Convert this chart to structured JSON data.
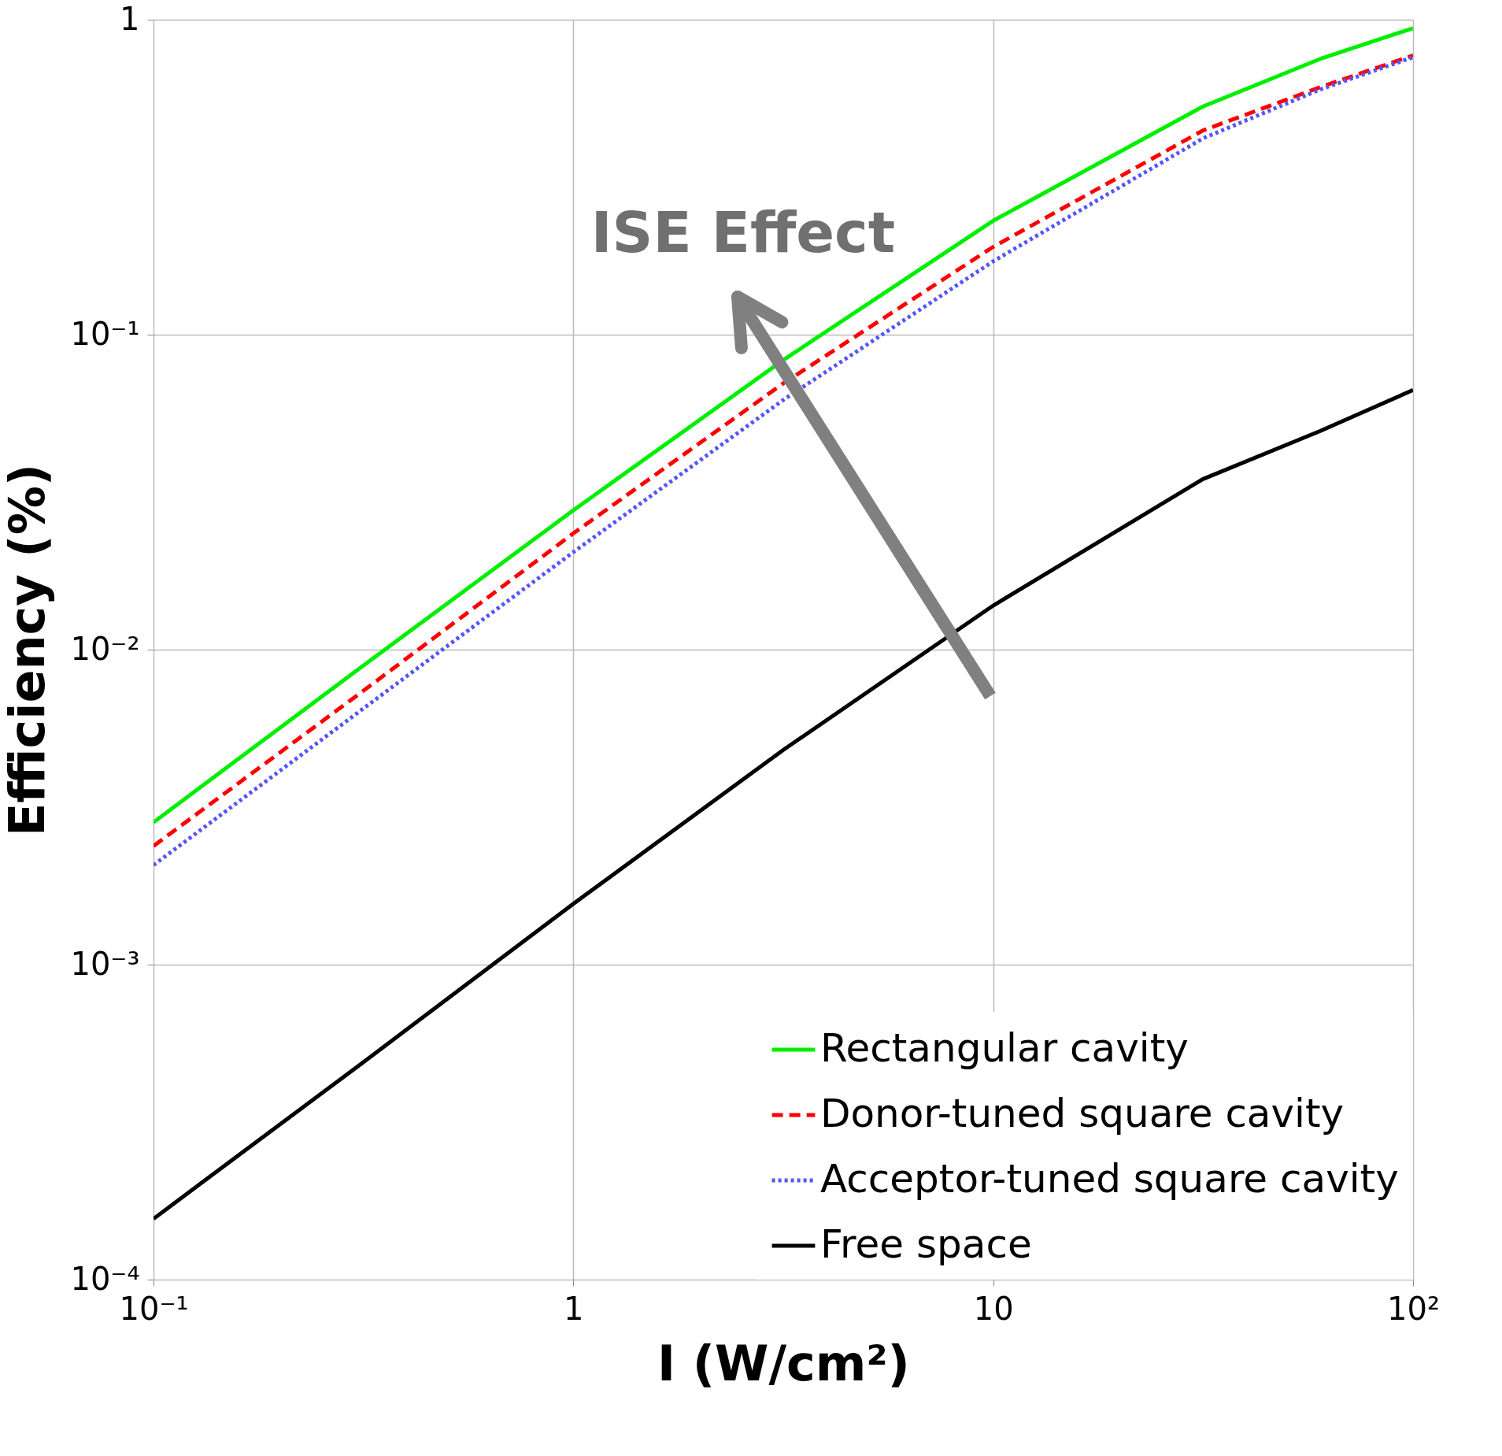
{
  "chart_data": {
    "type": "line",
    "xlabel": "I (W/cm²)",
    "ylabel": "Efficiency (%)",
    "log": "xy",
    "grid": true,
    "legend": "bottom right",
    "x": [
      0.1,
      0.316,
      1,
      3.16,
      10,
      31.6,
      60,
      100
    ],
    "xlim": [
      0.1,
      100
    ],
    "ylim": [
      0.0001,
      1
    ],
    "xticks": [
      {
        "value": 0.1,
        "label": "10⁻¹"
      },
      1,
      10,
      {
        "value": 100,
        "label": "10²"
      }
    ],
    "yticks": [
      {
        "value": 0.0001,
        "label": "10⁻⁴"
      },
      {
        "value": 0.001,
        "label": "10⁻³"
      },
      {
        "value": 0.01,
        "label": "10⁻²"
      },
      {
        "value": 0.1,
        "label": "10⁻¹"
      },
      1
    ],
    "series": [
      {
        "name": "Rectangular cavity",
        "color": "#00ee00",
        "line_style": "solid",
        "values": [
          0.00283,
          0.0089,
          0.0277,
          0.083,
          0.23,
          0.53,
          0.75,
          0.94
        ]
      },
      {
        "name": "Donor-tuned square cavity",
        "color": "#ff0000",
        "line_style": "dashed",
        "values": [
          0.00238,
          0.0074,
          0.0234,
          0.07,
          0.19,
          0.445,
          0.61,
          0.77
        ]
      },
      {
        "name": "Acceptor-tuned square cavity",
        "color": "#5555ff",
        "line_style": "dotted",
        "values": [
          0.00207,
          0.0065,
          0.0204,
          0.062,
          0.171,
          0.42,
          0.6,
          0.76
        ]
      },
      {
        "name": "Free space",
        "color": "#000000",
        "line_style": "solid",
        "values": [
          0.000156,
          0.00049,
          0.00156,
          0.0048,
          0.0138,
          0.0348,
          0.0494,
          0.0667
        ]
      }
    ],
    "annotations": [
      "ISE Effect"
    ]
  }
}
